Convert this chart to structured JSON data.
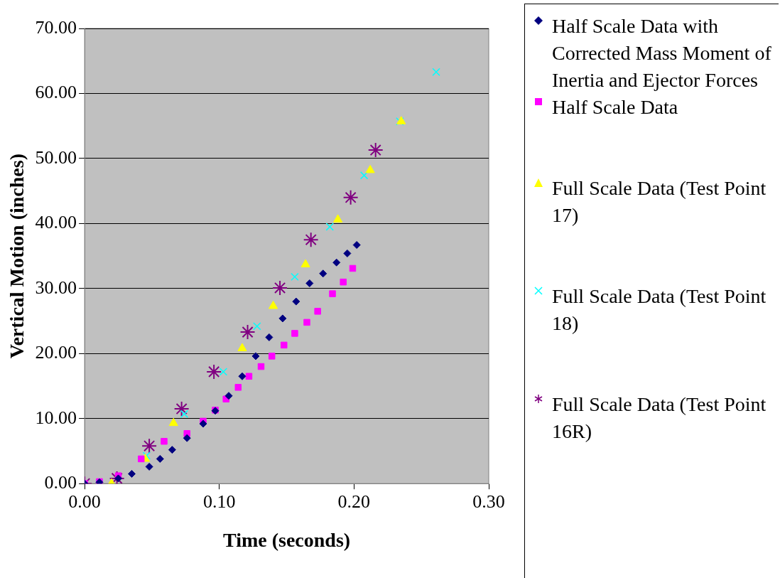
{
  "chart_data": {
    "type": "scatter",
    "xlabel": "Time (seconds)",
    "ylabel": "Vertical Motion (inches)",
    "xlim": [
      0,
      0.3
    ],
    "xticks": [
      {
        "value": 0,
        "label": "0.00"
      },
      {
        "value": 0.1,
        "label": "0.10"
      },
      {
        "value": 0.2,
        "label": "0.20"
      },
      {
        "value": 0.3,
        "label": "0.30"
      }
    ],
    "ylim": [
      0,
      70
    ],
    "yticks": [
      {
        "value": 0,
        "label": "0.00"
      },
      {
        "value": 10,
        "label": "10.00"
      },
      {
        "value": 20,
        "label": "20.00"
      },
      {
        "value": 30,
        "label": "30.00"
      },
      {
        "value": 40,
        "label": "40.00"
      },
      {
        "value": 50,
        "label": "50.00"
      },
      {
        "value": 60,
        "label": "60.00"
      },
      {
        "value": 70,
        "label": "70.00"
      }
    ],
    "grid": "y",
    "legend": "right",
    "series": [
      {
        "name": "Half Scale Data with Corrected Mass Moment of Inertia and Ejector Forces",
        "color": "#000080",
        "marker": "diamond",
        "x": [
          0,
          0.011,
          0.025,
          0.035,
          0.048,
          0.056,
          0.065,
          0.076,
          0.088,
          0.097,
          0.107,
          0.117,
          0.127,
          0.137,
          0.147,
          0.157,
          0.167,
          0.177,
          0.187,
          0.195,
          0.202
        ],
        "values": [
          0,
          0.2,
          0.8,
          1.5,
          2.6,
          3.8,
          5.2,
          7.0,
          9.2,
          11.2,
          13.5,
          16.5,
          19.6,
          22.5,
          25.4,
          28.0,
          30.8,
          32.3,
          34.0,
          35.4,
          36.7
        ]
      },
      {
        "name": "Half Scale Data",
        "color": "#ff00ff",
        "marker": "square",
        "x": [
          0,
          0.011,
          0.025,
          0.042,
          0.059,
          0.076,
          0.088,
          0.097,
          0.105,
          0.114,
          0.122,
          0.131,
          0.139,
          0.148,
          0.156,
          0.165,
          0.173,
          0.184,
          0.192,
          0.199
        ],
        "values": [
          0,
          0.3,
          1.2,
          3.8,
          6.5,
          7.7,
          9.6,
          11.3,
          13.0,
          14.8,
          16.5,
          18.0,
          19.6,
          21.3,
          23.1,
          24.8,
          26.5,
          29.2,
          31.0,
          33.1
        ]
      },
      {
        "name": "Full Scale Data (Test Point 17)",
        "color": "#ffff00",
        "marker": "triangle",
        "x": [
          0.02,
          0.045,
          0.066,
          0.117,
          0.14,
          0.164,
          0.188,
          0.212,
          0.235
        ],
        "values": [
          0,
          3.8,
          9.3,
          20.8,
          27.3,
          33.7,
          40.6,
          48.2,
          55.7
        ]
      },
      {
        "name": "Full Scale Data (Test Point 18)",
        "color": "#00ffff",
        "marker": "cross",
        "x": [
          0.011,
          0.046,
          0.074,
          0.103,
          0.128,
          0.156,
          0.182,
          0.2075,
          0.234,
          0.261
        ],
        "values": [
          0,
          4.3,
          10.7,
          17.2,
          24.2,
          31.8,
          39.5,
          47.4,
          55.7,
          63.3
        ]
      },
      {
        "name": "Full Scale Data (Test Point 16R)",
        "color": "#800080",
        "x": [
          0,
          0.024,
          0.048,
          0.072,
          0.096,
          0.121,
          0.145,
          0.168,
          0.1975,
          0.216
        ],
        "values": [
          0,
          0.8,
          5.8,
          11.5,
          17.2,
          23.3,
          30.1,
          37.5,
          44.0,
          51.3
        ]
      }
    ]
  }
}
